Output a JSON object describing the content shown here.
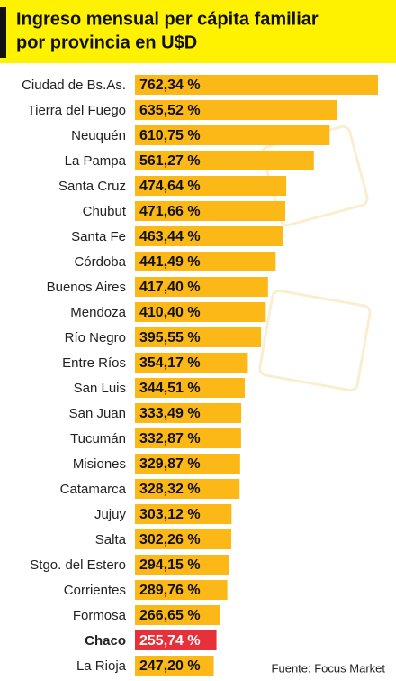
{
  "chart_data": {
    "type": "bar",
    "orientation": "horizontal",
    "title": "Ingreso mensual per cápita familiar",
    "subtitle": "por provincia en U$D",
    "source": "Fuente: Focus Market",
    "color": "#fbb817",
    "categories": [
      "Ciudad de Bs.As.",
      "Tierra del Fuego",
      "Neuquén",
      "La Pampa",
      "Santa Cruz",
      "Chubut",
      "Santa Fe",
      "Córdoba",
      "Buenos Aires",
      "Mendoza",
      "Río Negro",
      "Entre Ríos",
      "San Luis",
      "San Juan",
      "Tucumán",
      "Misiones",
      "Catamarca",
      "Jujuy",
      "Salta",
      "Stgo. del Estero",
      "Corrientes",
      "Formosa",
      "Chaco",
      "La Rioja"
    ],
    "values": [
      762.34,
      635.52,
      610.75,
      561.27,
      474.64,
      471.66,
      463.44,
      441.49,
      417.4,
      410.4,
      395.55,
      354.17,
      344.51,
      333.49,
      332.87,
      329.87,
      328.32,
      303.12,
      302.26,
      294.15,
      289.76,
      266.65,
      255.74,
      247.2
    ],
    "value_labels": [
      "762,34 %",
      "635,52 %",
      "610,75 %",
      "561,27 %",
      "474,64 %",
      "471,66 %",
      "463,44 %",
      "441,49 %",
      "417,40 %",
      "410,40 %",
      "395,55 %",
      "354,17 %",
      "344,51 %",
      "333,49 %",
      "332,87 %",
      "329,87 %",
      "328,32 %",
      "303,12 %",
      "302,26 %",
      "294,15 %",
      "289,76 %",
      "266,65 %",
      "255,74 %",
      "247,20 %"
    ],
    "colors": [
      "#fbb817",
      "#fbb817",
      "#fbb817",
      "#fbb817",
      "#fbb817",
      "#fbb817",
      "#fbb817",
      "#fbb817",
      "#fbb817",
      "#fbb817",
      "#fbb817",
      "#fbb817",
      "#fbb817",
      "#fbb817",
      "#fbb817",
      "#fbb817",
      "#fbb817",
      "#fbb817",
      "#fbb817",
      "#fbb817",
      "#fbb817",
      "#fbb817",
      "#e8303a",
      "#fbb817"
    ]
  }
}
